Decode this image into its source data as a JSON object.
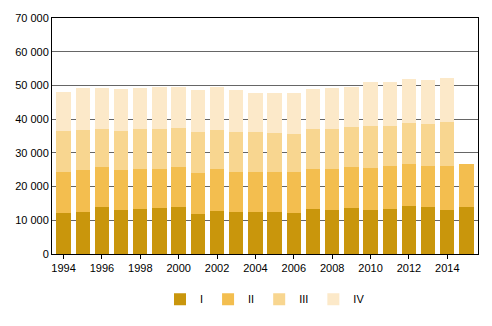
{
  "chart_data": {
    "type": "bar",
    "stacked": true,
    "grid": true,
    "legend": "bottom",
    "categories": [
      "1994",
      null,
      "1996",
      null,
      "1998",
      null,
      "2000",
      null,
      "2002",
      null,
      "2004",
      null,
      "2006",
      null,
      "2008",
      null,
      "2010",
      null,
      "2012",
      null,
      "2014",
      null
    ],
    "ylim": [
      0,
      70000
    ],
    "yticks": [
      0,
      {
        "value": 10000,
        "label": "10 000"
      },
      {
        "value": 20000,
        "label": "20 000"
      },
      {
        "value": 30000,
        "label": "30 000"
      },
      {
        "value": 40000,
        "label": "40 000"
      },
      {
        "value": 50000,
        "label": "50 000"
      },
      {
        "value": 60000,
        "label": "60 000"
      },
      {
        "value": 70000,
        "label": "70 000"
      }
    ],
    "series": [
      {
        "name": "I",
        "color": "#c9960c",
        "values": [
          12300,
          12600,
          13800,
          13000,
          13400,
          13600,
          13900,
          12000,
          12800,
          12600,
          12600,
          12400,
          12100,
          13400,
          13100,
          13500,
          13000,
          13300,
          14200,
          14000,
          13100,
          13800
        ]
      },
      {
        "name": "II",
        "color": "#f3be4f",
        "values": [
          11900,
          12200,
          11900,
          12000,
          11900,
          11700,
          11800,
          12000,
          12400,
          11600,
          11700,
          12000,
          12100,
          11800,
          12000,
          12300,
          12500,
          12700,
          12500,
          12200,
          13000,
          12900
        ]
      },
      {
        "name": "III",
        "color": "#f8d690",
        "values": [
          12300,
          12100,
          11400,
          11500,
          11900,
          11900,
          11700,
          12300,
          11500,
          11900,
          11800,
          11600,
          11400,
          11800,
          11900,
          11800,
          12400,
          12100,
          12100,
          12400,
          13100,
          null
        ]
      },
      {
        "name": "IV",
        "color": "#fce9c9",
        "values": [
          11600,
          12300,
          12000,
          12400,
          12000,
          12400,
          12000,
          12200,
          12700,
          12500,
          11600,
          11900,
          12300,
          12000,
          12100,
          12000,
          13000,
          12800,
          13100,
          12900,
          12900,
          null
        ]
      }
    ]
  }
}
